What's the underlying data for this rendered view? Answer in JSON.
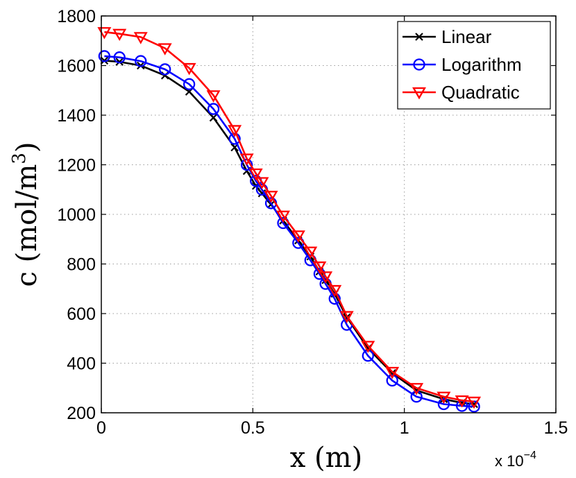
{
  "chart_data": {
    "type": "line",
    "title": "",
    "xlabel": "x (m)",
    "ylabel_main": "c (mol/m",
    "ylabel_sup": "3",
    "ylabel_close": ")",
    "xlim": [
      0,
      1.5
    ],
    "ylim": [
      200,
      1800
    ],
    "x_scale_note": {
      "base": "x 10",
      "exponent": "−4"
    },
    "xticks": [
      0,
      0.5,
      1,
      1.5
    ],
    "xtick_labels": [
      "0",
      "0.5",
      "1",
      "1.5"
    ],
    "yticks": [
      200,
      400,
      600,
      800,
      1000,
      1200,
      1400,
      1600,
      1800
    ],
    "ytick_labels": [
      "200",
      "400",
      "600",
      "800",
      "1000",
      "1200",
      "1400",
      "1600",
      "1800"
    ],
    "grid": true,
    "legend_position": "top-right",
    "series": [
      {
        "name": "Linear",
        "color": "#000000",
        "marker": "x",
        "x": [
          0.01,
          0.06,
          0.13,
          0.21,
          0.29,
          0.37,
          0.44,
          0.48,
          0.51,
          0.53,
          0.56,
          0.6,
          0.65,
          0.69,
          0.72,
          0.74,
          0.77,
          0.81,
          0.88,
          0.96,
          1.04,
          1.13,
          1.19,
          1.23
        ],
        "y": [
          1620,
          1615,
          1600,
          1560,
          1495,
          1390,
          1270,
          1175,
          1115,
          1085,
          1040,
          975,
          895,
          830,
          770,
          735,
          680,
          585,
          460,
          360,
          290,
          255,
          240,
          235
        ]
      },
      {
        "name": "Logarithm",
        "color": "#0000ff",
        "marker": "o",
        "x": [
          0.01,
          0.06,
          0.13,
          0.21,
          0.29,
          0.37,
          0.44,
          0.48,
          0.51,
          0.53,
          0.56,
          0.6,
          0.65,
          0.69,
          0.72,
          0.74,
          0.77,
          0.81,
          0.88,
          0.96,
          1.04,
          1.13,
          1.19,
          1.23
        ],
        "y": [
          1638,
          1633,
          1618,
          1585,
          1525,
          1425,
          1305,
          1200,
          1135,
          1100,
          1045,
          965,
          885,
          815,
          760,
          720,
          660,
          555,
          430,
          330,
          265,
          235,
          228,
          225
        ]
      },
      {
        "name": "Quadratic",
        "color": "#ff0000",
        "marker": "v",
        "x": [
          0.01,
          0.06,
          0.13,
          0.21,
          0.29,
          0.37,
          0.44,
          0.48,
          0.51,
          0.53,
          0.56,
          0.6,
          0.65,
          0.69,
          0.72,
          0.74,
          0.77,
          0.81,
          0.88,
          0.96,
          1.04,
          1.13,
          1.19,
          1.23
        ],
        "y": [
          1735,
          1728,
          1715,
          1670,
          1590,
          1480,
          1340,
          1225,
          1165,
          1130,
          1075,
          995,
          915,
          850,
          790,
          750,
          695,
          590,
          470,
          365,
          300,
          265,
          250,
          245
        ]
      }
    ]
  }
}
